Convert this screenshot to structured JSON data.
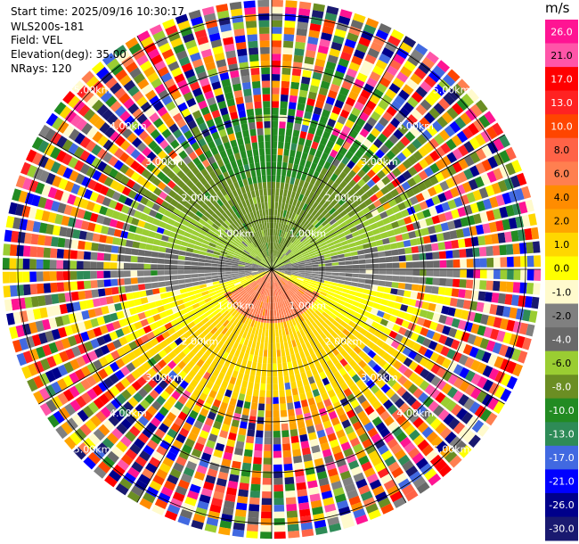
{
  "header": {
    "start_time": "Start time: 2025/09/16 10:30:17",
    "instrument": "WLS200s-181",
    "field": "Field: VEL",
    "elevation": "Elevation(deg): 35.00",
    "nrays": "NRays: 120"
  },
  "chart_data": {
    "type": "heatmap",
    "subtype": "ppi-polar",
    "field": "VEL",
    "units": "m/s",
    "range_rings_km": [
      1,
      2,
      3,
      4,
      5
    ],
    "range_labels": [
      "1.00km",
      "2.00km",
      "3.00km",
      "4.00km",
      "5.00km"
    ],
    "max_range_km": 5.3,
    "radial_lines": 12,
    "n_rays": 120,
    "n_gates": 40,
    "colorbar": {
      "label": "m/s",
      "ticks": [
        "26.0",
        "21.0",
        "17.0",
        "13.0",
        "10.0",
        "8.0",
        "6.0",
        "4.0",
        "2.0",
        "1.0",
        "0.0",
        "-1.0",
        "-2.0",
        "-4.0",
        "-6.0",
        "-8.0",
        "-10.0",
        "-13.0",
        "-17.0",
        "-21.0",
        "-26.0",
        "-30.0"
      ],
      "colors": [
        "#ff1493",
        "#ff55a8",
        "#ff0000",
        "#ff2222",
        "#ff4500",
        "#ff6347",
        "#ff7f50",
        "#ff8c00",
        "#ffa500",
        "#ffd700",
        "#ffff00",
        "#fffacd",
        "#808080",
        "#696969",
        "#9acd32",
        "#6b8e23",
        "#228b22",
        "#2e8b57",
        "#4169e1",
        "#0000ff",
        "#00008b",
        "#191970"
      ]
    }
  }
}
